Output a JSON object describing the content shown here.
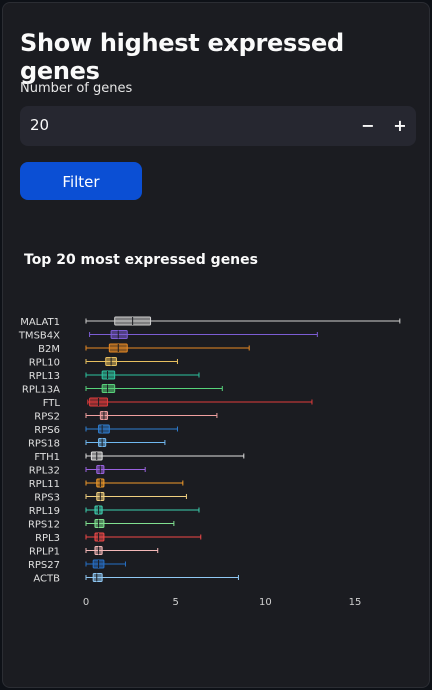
{
  "page": {
    "title": "Show highest expressed genes",
    "number_input": {
      "label": "Number of genes",
      "value": "20",
      "minus": "−",
      "plus": "+"
    },
    "filter_button": "Filter",
    "chart_title": "Top 20 most expressed genes"
  },
  "colors": {
    "background": "#0e1117",
    "panel": "#1b1c21",
    "input": "#262730",
    "button": "#0b4fd4",
    "axis_text": "#d0d0d0"
  },
  "chart_data": {
    "type": "box",
    "orientation": "horizontal",
    "title": "Top 20 most expressed genes",
    "xlim": [
      -0.5,
      17.8
    ],
    "xticks": [
      0,
      5,
      10,
      15
    ],
    "grid": false,
    "series": [
      {
        "name": "MALAT1",
        "color": "#d0d0d0",
        "min": 0.0,
        "q1": 1.6,
        "median": 2.6,
        "q3": 3.6,
        "max": 17.5
      },
      {
        "name": "TMSB4X",
        "color": "#7c5dd4",
        "min": 0.2,
        "q1": 1.4,
        "median": 1.8,
        "q3": 2.3,
        "max": 12.9
      },
      {
        "name": "B2M",
        "color": "#e88a24",
        "min": 0.0,
        "q1": 1.3,
        "median": 1.8,
        "q3": 2.3,
        "max": 9.1
      },
      {
        "name": "RPL10",
        "color": "#e8c060",
        "min": 0.0,
        "q1": 1.1,
        "median": 1.4,
        "q3": 1.7,
        "max": 5.1
      },
      {
        "name": "RPL13",
        "color": "#2ec4a0",
        "min": 0.0,
        "q1": 0.9,
        "median": 1.2,
        "q3": 1.6,
        "max": 6.3
      },
      {
        "name": "RPL13A",
        "color": "#57d27a",
        "min": 0.0,
        "q1": 0.9,
        "median": 1.2,
        "q3": 1.6,
        "max": 7.6
      },
      {
        "name": "FTL",
        "color": "#e03c3c",
        "min": 0.1,
        "q1": 0.2,
        "median": 0.7,
        "q3": 1.2,
        "max": 12.6
      },
      {
        "name": "RPS2",
        "color": "#f0a0a0",
        "min": 0.0,
        "q1": 0.8,
        "median": 1.0,
        "q3": 1.2,
        "max": 7.3
      },
      {
        "name": "RPS6",
        "color": "#2f7fd2",
        "min": 0.0,
        "q1": 0.7,
        "median": 0.9,
        "q3": 1.3,
        "max": 5.1
      },
      {
        "name": "RPS18",
        "color": "#70b8f0",
        "min": 0.0,
        "q1": 0.7,
        "median": 0.9,
        "q3": 1.1,
        "max": 4.4
      },
      {
        "name": "FTH1",
        "color": "#e0e0e0",
        "min": 0.0,
        "q1": 0.3,
        "median": 0.6,
        "q3": 0.9,
        "max": 8.8
      },
      {
        "name": "RPL32",
        "color": "#9a62e0",
        "min": 0.0,
        "q1": 0.6,
        "median": 0.8,
        "q3": 1.0,
        "max": 3.3
      },
      {
        "name": "RPL11",
        "color": "#f09a2a",
        "min": 0.0,
        "q1": 0.6,
        "median": 0.8,
        "q3": 1.0,
        "max": 5.4
      },
      {
        "name": "RPS3",
        "color": "#f0d080",
        "min": 0.0,
        "q1": 0.6,
        "median": 0.8,
        "q3": 1.0,
        "max": 5.6
      },
      {
        "name": "RPL19",
        "color": "#3ed0b0",
        "min": 0.0,
        "q1": 0.5,
        "median": 0.7,
        "q3": 0.9,
        "max": 6.3
      },
      {
        "name": "RPS12",
        "color": "#80e090",
        "min": 0.0,
        "q1": 0.5,
        "median": 0.7,
        "q3": 1.0,
        "max": 4.9
      },
      {
        "name": "RPL3",
        "color": "#f04848",
        "min": 0.0,
        "q1": 0.5,
        "median": 0.7,
        "q3": 1.0,
        "max": 6.4
      },
      {
        "name": "RPLP1",
        "color": "#f4b8b8",
        "min": 0.0,
        "q1": 0.5,
        "median": 0.7,
        "q3": 0.9,
        "max": 4.0
      },
      {
        "name": "RPS27",
        "color": "#2670c8",
        "min": 0.0,
        "q1": 0.4,
        "median": 0.7,
        "q3": 1.0,
        "max": 2.2
      },
      {
        "name": "ACTB",
        "color": "#90c8f4",
        "min": 0.0,
        "q1": 0.4,
        "median": 0.6,
        "q3": 0.9,
        "max": 8.5
      }
    ]
  }
}
